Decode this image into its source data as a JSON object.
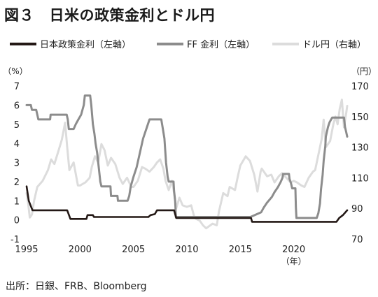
{
  "title": "図３　日米の政策金利とドル円",
  "legend": [
    {
      "label": "日本政策金利（左軸）",
      "color": "#231815"
    },
    {
      "label": "FF 金利（左軸）",
      "color": "#8c8c8c"
    },
    {
      "label": "ドル円（右軸）",
      "color": "#dcdcdc"
    }
  ],
  "source": "出所：日銀、FRB、Bloomberg",
  "chart_data": {
    "type": "line",
    "y_left_label": "（%）",
    "y_right_label": "（円）",
    "x_unit_label": "（年）",
    "xlim": [
      1995,
      2025
    ],
    "ylim_left": [
      -1,
      7
    ],
    "ylim_right": [
      70,
      170
    ],
    "x_ticks": [
      1995,
      2000,
      2005,
      2010,
      2015,
      2020
    ],
    "y_left_ticks": [
      -1,
      0,
      1,
      2,
      3,
      4,
      5,
      6,
      7
    ],
    "y_right_ticks": [
      70,
      90,
      110,
      130,
      150,
      170
    ],
    "grid": false,
    "legend_position": "top",
    "series": [
      {
        "name": "日本政策金利（左軸）",
        "axis": "left",
        "color": "#231815",
        "points": [
          [
            1995.0,
            1.75
          ],
          [
            1995.2,
            1.0
          ],
          [
            1995.55,
            0.5
          ],
          [
            1998.8,
            0.5
          ],
          [
            1999.1,
            0.05
          ],
          [
            2000.6,
            0.05
          ],
          [
            2000.7,
            0.25
          ],
          [
            2001.2,
            0.25
          ],
          [
            2001.3,
            0.15
          ],
          [
            2006.4,
            0.15
          ],
          [
            2006.6,
            0.25
          ],
          [
            2007.0,
            0.3
          ],
          [
            2007.2,
            0.5
          ],
          [
            2008.8,
            0.5
          ],
          [
            2008.9,
            0.3
          ],
          [
            2009.0,
            0.1
          ],
          [
            2016.0,
            0.1
          ],
          [
            2016.1,
            -0.1
          ],
          [
            2024.0,
            -0.1
          ],
          [
            2024.25,
            0.1
          ],
          [
            2024.6,
            0.25
          ],
          [
            2025.0,
            0.5
          ]
        ]
      },
      {
        "name": "FF 金利（左軸）",
        "axis": "left",
        "color": "#8c8c8c",
        "points": [
          [
            1995.0,
            6.0
          ],
          [
            1995.4,
            6.0
          ],
          [
            1995.5,
            5.75
          ],
          [
            1995.9,
            5.75
          ],
          [
            1996.0,
            5.5
          ],
          [
            1996.1,
            5.25
          ],
          [
            1997.2,
            5.25
          ],
          [
            1997.25,
            5.5
          ],
          [
            1998.75,
            5.5
          ],
          [
            1998.85,
            5.25
          ],
          [
            1998.95,
            4.75
          ],
          [
            1999.4,
            4.75
          ],
          [
            1999.6,
            5.0
          ],
          [
            1999.85,
            5.25
          ],
          [
            2000.1,
            5.5
          ],
          [
            2000.35,
            6.0
          ],
          [
            2000.45,
            6.5
          ],
          [
            2000.95,
            6.5
          ],
          [
            2001.05,
            6.0
          ],
          [
            2001.2,
            5.0
          ],
          [
            2001.35,
            4.5
          ],
          [
            2001.45,
            4.0
          ],
          [
            2001.6,
            3.5
          ],
          [
            2001.7,
            3.0
          ],
          [
            2001.8,
            2.5
          ],
          [
            2001.9,
            2.0
          ],
          [
            2002.0,
            1.75
          ],
          [
            2002.85,
            1.75
          ],
          [
            2002.9,
            1.25
          ],
          [
            2003.5,
            1.25
          ],
          [
            2003.55,
            1.0
          ],
          [
            2004.45,
            1.0
          ],
          [
            2004.6,
            1.25
          ],
          [
            2004.75,
            1.75
          ],
          [
            2005.0,
            2.25
          ],
          [
            2005.3,
            2.75
          ],
          [
            2005.6,
            3.5
          ],
          [
            2005.9,
            4.25
          ],
          [
            2006.2,
            4.75
          ],
          [
            2006.5,
            5.25
          ],
          [
            2007.6,
            5.25
          ],
          [
            2007.75,
            4.75
          ],
          [
            2007.9,
            4.25
          ],
          [
            2008.05,
            3.0
          ],
          [
            2008.2,
            2.25
          ],
          [
            2008.3,
            2.0
          ],
          [
            2008.75,
            2.0
          ],
          [
            2008.8,
            1.5
          ],
          [
            2008.9,
            1.0
          ],
          [
            2008.97,
            0.15
          ],
          [
            2015.95,
            0.15
          ],
          [
            2016.95,
            0.4
          ],
          [
            2017.2,
            0.65
          ],
          [
            2017.5,
            0.9
          ],
          [
            2017.95,
            1.2
          ],
          [
            2018.2,
            1.45
          ],
          [
            2018.5,
            1.7
          ],
          [
            2018.75,
            1.95
          ],
          [
            2018.95,
            2.2
          ],
          [
            2019.0,
            2.4
          ],
          [
            2019.55,
            2.4
          ],
          [
            2019.6,
            2.15
          ],
          [
            2019.75,
            1.9
          ],
          [
            2019.85,
            1.65
          ],
          [
            2020.15,
            1.65
          ],
          [
            2020.2,
            0.65
          ],
          [
            2020.25,
            0.1
          ],
          [
            2022.15,
            0.1
          ],
          [
            2022.3,
            0.35
          ],
          [
            2022.45,
            0.85
          ],
          [
            2022.55,
            1.6
          ],
          [
            2022.7,
            2.35
          ],
          [
            2022.8,
            3.1
          ],
          [
            2022.95,
            3.85
          ],
          [
            2023.0,
            4.35
          ],
          [
            2023.1,
            4.6
          ],
          [
            2023.2,
            4.85
          ],
          [
            2023.35,
            5.1
          ],
          [
            2023.6,
            5.35
          ],
          [
            2024.7,
            5.35
          ],
          [
            2024.8,
            4.85
          ],
          [
            2024.9,
            4.6
          ],
          [
            2025.0,
            4.35
          ]
        ]
      },
      {
        "name": "ドル円（右軸）",
        "axis": "right",
        "color": "#dcdcdc",
        "points": [
          [
            1995.0,
            100
          ],
          [
            1995.15,
            93
          ],
          [
            1995.3,
            84
          ],
          [
            1995.5,
            86
          ],
          [
            1995.7,
            95
          ],
          [
            1996.0,
            104
          ],
          [
            1996.5,
            108
          ],
          [
            1997.0,
            115
          ],
          [
            1997.3,
            122
          ],
          [
            1997.6,
            119
          ],
          [
            1998.0,
            128
          ],
          [
            1998.3,
            135
          ],
          [
            1998.6,
            146
          ],
          [
            1998.8,
            130
          ],
          [
            1999.0,
            115
          ],
          [
            1999.4,
            120
          ],
          [
            1999.8,
            105
          ],
          [
            2000.0,
            105
          ],
          [
            2000.5,
            107
          ],
          [
            2000.9,
            110
          ],
          [
            2001.1,
            117
          ],
          [
            2001.4,
            124
          ],
          [
            2001.7,
            120
          ],
          [
            2002.0,
            132
          ],
          [
            2002.3,
            128
          ],
          [
            2002.6,
            118
          ],
          [
            2002.9,
            123
          ],
          [
            2003.3,
            119
          ],
          [
            2003.7,
            110
          ],
          [
            2004.0,
            106
          ],
          [
            2004.4,
            110
          ],
          [
            2004.8,
            104
          ],
          [
            2005.0,
            104
          ],
          [
            2005.4,
            108
          ],
          [
            2005.8,
            117
          ],
          [
            2006.1,
            116
          ],
          [
            2006.5,
            114
          ],
          [
            2006.9,
            117
          ],
          [
            2007.2,
            120
          ],
          [
            2007.5,
            122
          ],
          [
            2007.8,
            116
          ],
          [
            2008.0,
            108
          ],
          [
            2008.3,
            102
          ],
          [
            2008.6,
            108
          ],
          [
            2008.8,
            100
          ],
          [
            2009.0,
            90
          ],
          [
            2009.3,
            97
          ],
          [
            2009.6,
            92
          ],
          [
            2010.0,
            91
          ],
          [
            2010.4,
            92
          ],
          [
            2010.7,
            84
          ],
          [
            2010.9,
            83
          ],
          [
            2011.2,
            82
          ],
          [
            2011.5,
            79
          ],
          [
            2011.8,
            77
          ],
          [
            2012.0,
            78
          ],
          [
            2012.4,
            80
          ],
          [
            2012.8,
            79
          ],
          [
            2013.0,
            88
          ],
          [
            2013.4,
            100
          ],
          [
            2013.8,
            98
          ],
          [
            2014.0,
            104
          ],
          [
            2014.5,
            102
          ],
          [
            2014.8,
            112
          ],
          [
            2015.0,
            118
          ],
          [
            2015.5,
            124
          ],
          [
            2015.9,
            121
          ],
          [
            2016.3,
            112
          ],
          [
            2016.6,
            101
          ],
          [
            2016.9,
            114
          ],
          [
            2017.0,
            116
          ],
          [
            2017.5,
            111
          ],
          [
            2017.9,
            112
          ],
          [
            2018.2,
            107
          ],
          [
            2018.6,
            111
          ],
          [
            2018.9,
            113
          ],
          [
            2019.3,
            110
          ],
          [
            2019.7,
            107
          ],
          [
            2020.0,
            108
          ],
          [
            2020.3,
            107
          ],
          [
            2020.7,
            105
          ],
          [
            2021.0,
            104
          ],
          [
            2021.4,
            110
          ],
          [
            2021.8,
            114
          ],
          [
            2022.0,
            115
          ],
          [
            2022.3,
            125
          ],
          [
            2022.6,
            135
          ],
          [
            2022.8,
            148
          ],
          [
            2023.0,
            130
          ],
          [
            2023.4,
            134
          ],
          [
            2023.7,
            145
          ],
          [
            2023.9,
            150
          ],
          [
            2024.1,
            145
          ],
          [
            2024.3,
            155
          ],
          [
            2024.5,
            161
          ],
          [
            2024.7,
            143
          ],
          [
            2024.9,
            152
          ],
          [
            2025.0,
            157
          ]
        ]
      }
    ]
  }
}
